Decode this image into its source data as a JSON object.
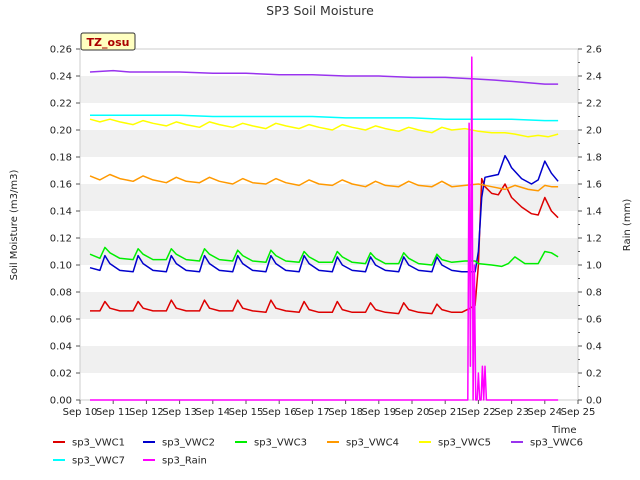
{
  "chart_data": {
    "type": "line",
    "title": "SP3 Soil Moisture",
    "site_badge": "TZ_osu",
    "xlabel": "Time",
    "ylabel": "Soil Moisture (m3/m3)",
    "y2label": "Rain (mm)",
    "x_ticks": [
      "Sep 10",
      "Sep 11",
      "Sep 12",
      "Sep 13",
      "Sep 14",
      "Sep 15",
      "Sep 16",
      "Sep 17",
      "Sep 18",
      "Sep 19",
      "Sep 20",
      "Sep 21",
      "Sep 22",
      "Sep 23",
      "Sep 24",
      "Sep 25"
    ],
    "xlim": [
      10,
      25
    ],
    "ylim": [
      0,
      0.26
    ],
    "y_ticks": [
      "0.00",
      "0.02",
      "0.04",
      "0.06",
      "0.08",
      "0.10",
      "0.12",
      "0.14",
      "0.16",
      "0.18",
      "0.20",
      "0.22",
      "0.24",
      "0.26"
    ],
    "y2lim": [
      0,
      2.6
    ],
    "y2_ticks": [
      "0.0",
      "0.2",
      "0.4",
      "0.6",
      "0.8",
      "1.0",
      "1.2",
      "1.4",
      "1.6",
      "1.8",
      "2.0",
      "2.2",
      "2.4",
      "2.6"
    ],
    "grid": "horizontal bands",
    "legend_position": "bottom",
    "series": [
      {
        "name": "sp3_VWC1",
        "axis": "left",
        "color": "#dd0000",
        "x": [
          10.3,
          10.6,
          10.75,
          10.9,
          11.2,
          11.6,
          11.75,
          11.9,
          12.2,
          12.6,
          12.75,
          12.9,
          13.2,
          13.6,
          13.75,
          13.9,
          14.2,
          14.6,
          14.75,
          14.9,
          15.2,
          15.6,
          15.75,
          15.9,
          16.2,
          16.6,
          16.75,
          16.9,
          17.2,
          17.6,
          17.75,
          17.9,
          18.2,
          18.6,
          18.75,
          18.9,
          19.2,
          19.6,
          19.75,
          19.9,
          20.2,
          20.6,
          20.75,
          20.9,
          21.2,
          21.5,
          21.75,
          21.9,
          22.0,
          22.1,
          22.2,
          22.4,
          22.6,
          22.8,
          22.9,
          23.0,
          23.3,
          23.6,
          23.8,
          24.0,
          24.2,
          24.4
        ],
        "y": [
          0.066,
          0.066,
          0.073,
          0.068,
          0.066,
          0.066,
          0.073,
          0.068,
          0.066,
          0.066,
          0.074,
          0.068,
          0.066,
          0.066,
          0.074,
          0.068,
          0.066,
          0.066,
          0.074,
          0.068,
          0.066,
          0.065,
          0.074,
          0.068,
          0.066,
          0.065,
          0.073,
          0.067,
          0.065,
          0.065,
          0.073,
          0.067,
          0.065,
          0.065,
          0.072,
          0.067,
          0.065,
          0.064,
          0.072,
          0.067,
          0.065,
          0.064,
          0.071,
          0.067,
          0.065,
          0.065,
          0.068,
          0.07,
          0.1,
          0.164,
          0.158,
          0.153,
          0.152,
          0.16,
          0.155,
          0.15,
          0.143,
          0.138,
          0.137,
          0.15,
          0.14,
          0.135
        ]
      },
      {
        "name": "sp3_VWC2",
        "axis": "left",
        "color": "#0000cc",
        "x": [
          10.3,
          10.6,
          10.75,
          10.9,
          11.2,
          11.6,
          11.75,
          11.9,
          12.2,
          12.6,
          12.75,
          12.9,
          13.2,
          13.6,
          13.75,
          13.9,
          14.2,
          14.6,
          14.75,
          14.9,
          15.2,
          15.6,
          15.75,
          15.9,
          16.2,
          16.6,
          16.75,
          16.9,
          17.2,
          17.6,
          17.75,
          17.9,
          18.2,
          18.6,
          18.75,
          18.9,
          19.2,
          19.6,
          19.75,
          19.9,
          20.2,
          20.6,
          20.75,
          20.9,
          21.2,
          21.5,
          21.75,
          21.9,
          22.0,
          22.1,
          22.2,
          22.4,
          22.6,
          22.8,
          22.9,
          23.0,
          23.3,
          23.6,
          23.8,
          24.0,
          24.2,
          24.4
        ],
        "y": [
          0.098,
          0.096,
          0.107,
          0.101,
          0.096,
          0.095,
          0.107,
          0.101,
          0.096,
          0.095,
          0.107,
          0.101,
          0.096,
          0.095,
          0.107,
          0.101,
          0.096,
          0.095,
          0.107,
          0.101,
          0.096,
          0.095,
          0.107,
          0.101,
          0.096,
          0.095,
          0.107,
          0.101,
          0.096,
          0.095,
          0.106,
          0.1,
          0.096,
          0.095,
          0.106,
          0.1,
          0.096,
          0.095,
          0.106,
          0.1,
          0.096,
          0.095,
          0.106,
          0.1,
          0.096,
          0.095,
          0.095,
          0.095,
          0.11,
          0.15,
          0.165,
          0.166,
          0.167,
          0.181,
          0.177,
          0.172,
          0.164,
          0.16,
          0.163,
          0.177,
          0.168,
          0.162
        ]
      },
      {
        "name": "sp3_VWC3",
        "axis": "left",
        "color": "#00ee00",
        "x": [
          10.3,
          10.6,
          10.75,
          10.9,
          11.2,
          11.6,
          11.75,
          11.9,
          12.2,
          12.6,
          12.75,
          12.9,
          13.2,
          13.6,
          13.75,
          13.9,
          14.2,
          14.6,
          14.75,
          14.9,
          15.2,
          15.6,
          15.75,
          15.9,
          16.2,
          16.6,
          16.75,
          16.9,
          17.2,
          17.6,
          17.75,
          17.9,
          18.2,
          18.6,
          18.75,
          18.9,
          19.2,
          19.6,
          19.75,
          19.9,
          20.2,
          20.6,
          20.75,
          20.9,
          21.2,
          21.6,
          21.9,
          22.0,
          22.4,
          22.7,
          22.9,
          23.1,
          23.4,
          23.8,
          24.0,
          24.2,
          24.4
        ],
        "y": [
          0.108,
          0.105,
          0.113,
          0.109,
          0.105,
          0.104,
          0.112,
          0.108,
          0.104,
          0.104,
          0.112,
          0.108,
          0.104,
          0.103,
          0.112,
          0.108,
          0.104,
          0.103,
          0.111,
          0.107,
          0.103,
          0.102,
          0.111,
          0.107,
          0.103,
          0.102,
          0.11,
          0.106,
          0.102,
          0.102,
          0.11,
          0.106,
          0.102,
          0.101,
          0.109,
          0.105,
          0.101,
          0.101,
          0.109,
          0.105,
          0.101,
          0.1,
          0.108,
          0.104,
          0.102,
          0.103,
          0.103,
          0.101,
          0.1,
          0.099,
          0.101,
          0.106,
          0.101,
          0.101,
          0.11,
          0.109,
          0.106
        ]
      },
      {
        "name": "sp3_VWC4",
        "axis": "left",
        "color": "#ff9900",
        "x": [
          10.3,
          10.6,
          10.9,
          11.2,
          11.6,
          11.9,
          12.2,
          12.6,
          12.9,
          13.2,
          13.6,
          13.9,
          14.2,
          14.6,
          14.9,
          15.2,
          15.6,
          15.9,
          16.2,
          16.6,
          16.9,
          17.2,
          17.6,
          17.9,
          18.2,
          18.6,
          18.9,
          19.2,
          19.6,
          19.9,
          20.2,
          20.6,
          20.9,
          21.2,
          21.6,
          22.0,
          22.4,
          22.8,
          23.1,
          23.5,
          23.8,
          24.0,
          24.2,
          24.4
        ],
        "y": [
          0.166,
          0.163,
          0.167,
          0.164,
          0.162,
          0.166,
          0.163,
          0.161,
          0.165,
          0.162,
          0.161,
          0.165,
          0.162,
          0.16,
          0.164,
          0.161,
          0.16,
          0.164,
          0.161,
          0.159,
          0.163,
          0.16,
          0.159,
          0.163,
          0.16,
          0.158,
          0.162,
          0.159,
          0.158,
          0.162,
          0.159,
          0.158,
          0.162,
          0.158,
          0.159,
          0.16,
          0.158,
          0.156,
          0.159,
          0.156,
          0.155,
          0.159,
          0.158,
          0.158
        ]
      },
      {
        "name": "sp3_VWC5",
        "axis": "left",
        "color": "#ffff00",
        "x": [
          10.3,
          10.6,
          10.9,
          11.2,
          11.6,
          11.9,
          12.2,
          12.6,
          12.9,
          13.2,
          13.6,
          13.9,
          14.2,
          14.6,
          14.9,
          15.2,
          15.6,
          15.9,
          16.2,
          16.6,
          16.9,
          17.2,
          17.6,
          17.9,
          18.2,
          18.6,
          18.9,
          19.2,
          19.6,
          19.9,
          20.2,
          20.6,
          20.9,
          21.2,
          21.6,
          22.0,
          22.4,
          22.8,
          23.1,
          23.5,
          23.8,
          24.1,
          24.4
        ],
        "y": [
          0.208,
          0.206,
          0.208,
          0.206,
          0.204,
          0.207,
          0.205,
          0.203,
          0.206,
          0.204,
          0.202,
          0.206,
          0.204,
          0.202,
          0.205,
          0.203,
          0.201,
          0.205,
          0.203,
          0.201,
          0.204,
          0.202,
          0.2,
          0.204,
          0.202,
          0.2,
          0.203,
          0.201,
          0.199,
          0.202,
          0.2,
          0.198,
          0.202,
          0.2,
          0.201,
          0.199,
          0.198,
          0.198,
          0.197,
          0.195,
          0.196,
          0.195,
          0.197
        ]
      },
      {
        "name": "sp3_VWC6",
        "axis": "left",
        "color": "#9933ee",
        "x": [
          10.3,
          11.0,
          11.5,
          12.0,
          13.0,
          14.0,
          15.0,
          16.0,
          17.0,
          18.0,
          19.0,
          20.0,
          21.0,
          21.8,
          22.5,
          23.0,
          23.5,
          24.0,
          24.4
        ],
        "y": [
          0.243,
          0.244,
          0.243,
          0.243,
          0.243,
          0.242,
          0.242,
          0.241,
          0.241,
          0.24,
          0.24,
          0.239,
          0.239,
          0.238,
          0.237,
          0.236,
          0.235,
          0.234,
          0.234
        ]
      },
      {
        "name": "sp3_VWC7",
        "axis": "left",
        "color": "#00ffff",
        "x": [
          10.3,
          11.0,
          12.0,
          13.0,
          14.0,
          15.0,
          16.0,
          17.0,
          18.0,
          19.0,
          20.0,
          21.0,
          22.0,
          23.0,
          24.0,
          24.4
        ],
        "y": [
          0.211,
          0.211,
          0.211,
          0.211,
          0.21,
          0.21,
          0.21,
          0.21,
          0.209,
          0.209,
          0.209,
          0.208,
          0.208,
          0.208,
          0.207,
          0.207
        ]
      },
      {
        "name": "sp3_Rain",
        "axis": "right",
        "color": "#ff00ff",
        "x": [
          10.3,
          21.68,
          21.72,
          21.76,
          21.8,
          21.84,
          21.88,
          21.92,
          21.96,
          22.0,
          22.04,
          22.08,
          22.12,
          22.16,
          22.2,
          22.24,
          22.3,
          24.4
        ],
        "y": [
          0.0,
          0.0,
          2.05,
          0.25,
          2.54,
          0.0,
          1.0,
          0.0,
          0.0,
          0.2,
          0.0,
          0.0,
          0.25,
          0.0,
          0.25,
          0.0,
          0.0,
          0.0
        ]
      }
    ]
  }
}
